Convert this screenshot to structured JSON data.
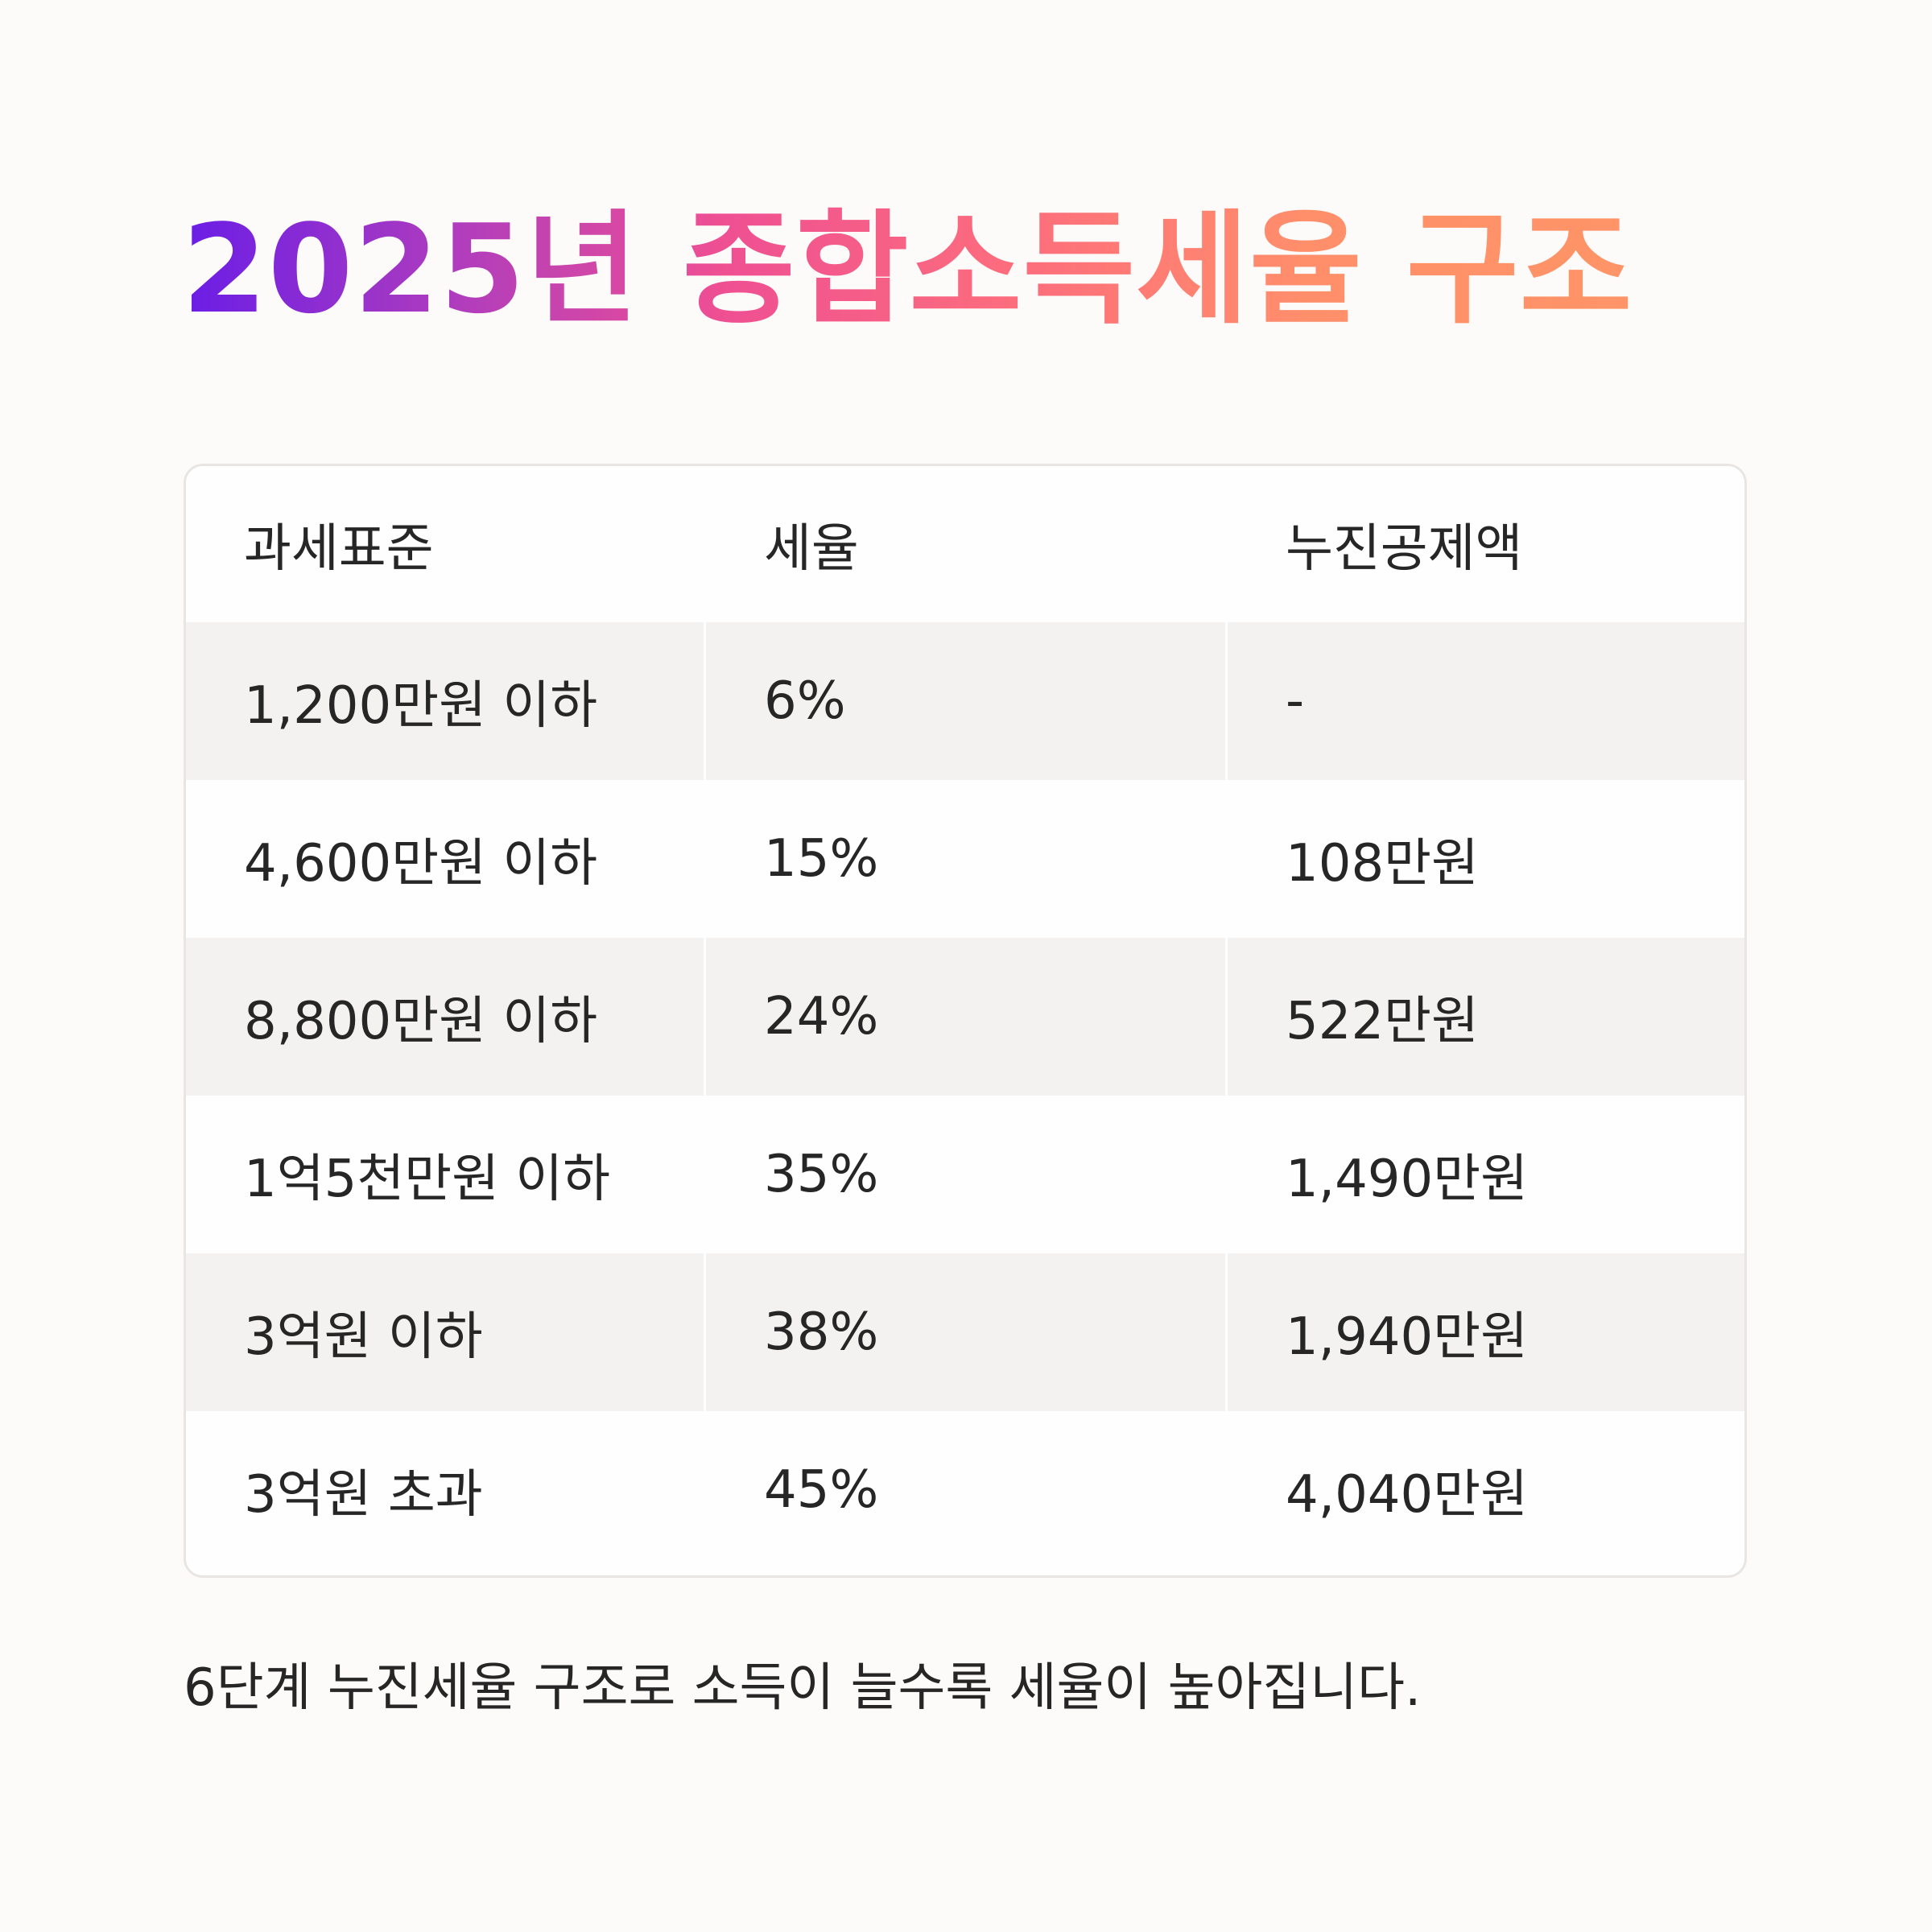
{
  "title": "2025년 종합소득세율 구조",
  "table": {
    "headers": [
      "과세표준",
      "세율",
      "누진공제액"
    ],
    "rows": [
      [
        "1,200만원 이하",
        "6%",
        "-"
      ],
      [
        "4,600만원 이하",
        "15%",
        "108만원"
      ],
      [
        "8,800만원 이하",
        "24%",
        "522만원"
      ],
      [
        "1억5천만원 이하",
        "35%",
        "1,490만원"
      ],
      [
        "3억원 이하",
        "38%",
        "1,940만원"
      ],
      [
        "3억원 초과",
        "45%",
        "4,040만원"
      ]
    ]
  },
  "caption": "6단계 누진세율 구조로 소득이 늘수록 세율이 높아집니다.",
  "colors": {
    "background": "#fdfbf9",
    "title_gradient_start": "#6a1de6",
    "title_gradient_end": "#ff9468",
    "row_shade": "#f4f2f0",
    "table_border": "#e9e5e2",
    "text": "#262626"
  }
}
